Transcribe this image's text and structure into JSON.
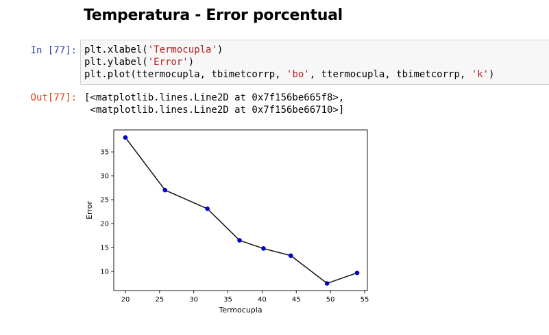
{
  "notebook": {
    "heading": "Temperatura - Error porcentual",
    "cell": {
      "in_prompt": "In [77]:",
      "out_prompt": "Out[77]:",
      "code_lines": [
        [
          {
            "t": "plt.xlabel(",
            "s": false
          },
          {
            "t": "'Termocupla'",
            "s": true
          },
          {
            "t": ")",
            "s": false
          }
        ],
        [
          {
            "t": "plt.ylabel(",
            "s": false
          },
          {
            "t": "'Error'",
            "s": true
          },
          {
            "t": ")",
            "s": false
          }
        ],
        [
          {
            "t": "plt.plot(ttermocupla, tbimetcorrp, ",
            "s": false
          },
          {
            "t": "'bo'",
            "s": true
          },
          {
            "t": ", ttermocupla, tbimetcorrp, ",
            "s": false
          },
          {
            "t": "'k'",
            "s": true
          },
          {
            "t": ")",
            "s": false
          }
        ]
      ],
      "output_lines": [
        "[<matplotlib.lines.Line2D at 0x7f156be665f8>,",
        " <matplotlib.lines.Line2D at 0x7f156be66710>]"
      ]
    }
  },
  "chart_data": {
    "type": "line",
    "title": "",
    "xlabel": "Termocupla",
    "ylabel": "Error",
    "x": [
      20.0,
      25.8,
      32.0,
      36.7,
      40.2,
      44.2,
      49.5,
      53.9
    ],
    "series": [
      {
        "values": [
          38.0,
          27.0,
          23.1,
          16.5,
          14.8,
          13.3,
          7.5,
          9.7
        ],
        "marker_color": "#0000cc",
        "line_color": "#1a1a1a"
      }
    ],
    "xlim": [
      18.3,
      55.4
    ],
    "ylim": [
      6.0,
      39.6
    ],
    "xticks": [
      20,
      25,
      30,
      35,
      40,
      45,
      50,
      55
    ],
    "yticks": [
      10,
      15,
      20,
      25,
      30,
      35
    ],
    "grid": false,
    "legend": "none"
  }
}
